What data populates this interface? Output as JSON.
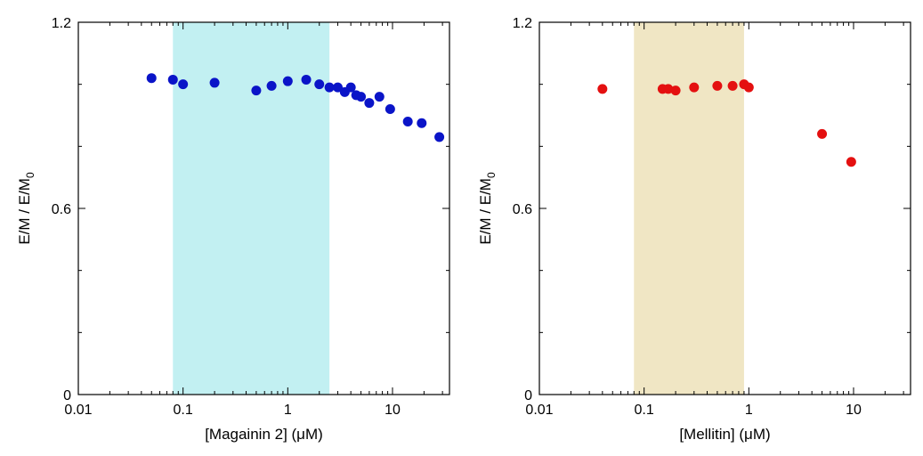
{
  "chart_data": [
    {
      "type": "scatter",
      "xlabel": "[Magainin 2] (μM)",
      "ylabel": "E/M / E/M",
      "ylabel_subscript": "0",
      "x_scale": "log",
      "xlim": [
        0.01,
        35
      ],
      "ylim": [
        0,
        1.2
      ],
      "x_ticks": [
        0.01,
        0.1,
        1,
        10
      ],
      "x_tick_labels": [
        "0.01",
        "0.1",
        "1",
        "10"
      ],
      "y_ticks": [
        0,
        0.6,
        1.2
      ],
      "y_tick_labels": [
        "0",
        "0.6",
        "1.2"
      ],
      "grid": false,
      "shaded_region": {
        "x_start": 0.08,
        "x_end": 2.5,
        "color": "#c2f0f2"
      },
      "marker_color": "#0a14c8",
      "series": [
        {
          "x": [
            0.05,
            0.08,
            0.1,
            0.2,
            0.5,
            0.7,
            1.0,
            1.5,
            2.0,
            2.5,
            3.0,
            3.5,
            4.0,
            4.5,
            5.0,
            6.0,
            7.5,
            9.5,
            14.0,
            19.0,
            28.0
          ],
          "y": [
            1.02,
            1.015,
            1.0,
            1.005,
            0.98,
            0.995,
            1.01,
            1.015,
            1.0,
            0.99,
            0.99,
            0.975,
            0.99,
            0.965,
            0.96,
            0.94,
            0.96,
            0.92,
            0.88,
            0.875,
            0.83
          ]
        }
      ]
    },
    {
      "type": "scatter",
      "xlabel": "[Mellitin] (μM)",
      "ylabel": "E/M / E/M",
      "ylabel_subscript": "0",
      "x_scale": "log",
      "xlim": [
        0.01,
        35
      ],
      "ylim": [
        0,
        1.2
      ],
      "x_ticks": [
        0.01,
        0.1,
        1,
        10
      ],
      "x_tick_labels": [
        "0.01",
        "0.1",
        "1",
        "10"
      ],
      "y_ticks": [
        0,
        0.6,
        1.2
      ],
      "y_tick_labels": [
        "0",
        "0.6",
        "1.2"
      ],
      "grid": false,
      "shaded_region": {
        "x_start": 0.08,
        "x_end": 0.9,
        "color": "#f0e6c4"
      },
      "marker_color": "#e41010",
      "series": [
        {
          "x": [
            0.04,
            0.15,
            0.17,
            0.2,
            0.3,
            0.5,
            0.7,
            0.9,
            1.0,
            5.0,
            9.5
          ],
          "y": [
            0.985,
            0.985,
            0.985,
            0.98,
            0.99,
            0.995,
            0.995,
            1.0,
            0.99,
            0.84,
            0.75
          ]
        }
      ]
    }
  ]
}
